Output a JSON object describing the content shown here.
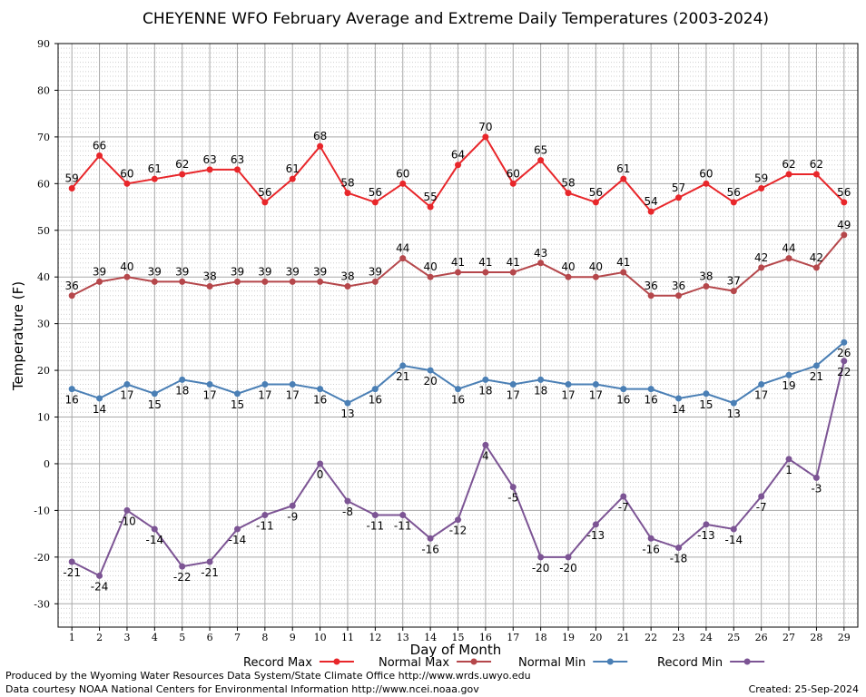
{
  "chart_data": {
    "type": "line",
    "title": "CHEYENNE WFO February Average and Extreme Daily Temperatures (2003-2024)",
    "xlabel": "Day of Month",
    "ylabel": "Temperature (F)",
    "ylim": [
      -35,
      90
    ],
    "yticks": [
      -30,
      -20,
      -10,
      0,
      10,
      20,
      30,
      40,
      50,
      60,
      70,
      80,
      90
    ],
    "categories": [
      "1",
      "2",
      "3",
      "4",
      "5",
      "6",
      "7",
      "8",
      "9",
      "10",
      "11",
      "12",
      "13",
      "14",
      "15",
      "16",
      "17",
      "18",
      "19",
      "20",
      "21",
      "22",
      "23",
      "24",
      "25",
      "26",
      "27",
      "28",
      "29"
    ],
    "grid": true,
    "legend_position": "bottom",
    "series": [
      {
        "name": "Record Max",
        "color": "#e8262a",
        "label_side": "above",
        "values": [
          59,
          66,
          60,
          61,
          62,
          63,
          63,
          56,
          61,
          68,
          58,
          56,
          60,
          55,
          64,
          70,
          60,
          65,
          58,
          56,
          61,
          54,
          57,
          60,
          56,
          59,
          62,
          62,
          56
        ]
      },
      {
        "name": "Normal Max",
        "color": "#b5474b",
        "label_side": "above",
        "values": [
          36,
          39,
          40,
          39,
          39,
          38,
          39,
          39,
          39,
          39,
          38,
          39,
          44,
          40,
          41,
          41,
          41,
          43,
          40,
          40,
          41,
          36,
          36,
          38,
          37,
          42,
          44,
          42,
          49
        ]
      },
      {
        "name": "Normal Min",
        "color": "#4a7fb5",
        "label_side": "below",
        "values": [
          16,
          14,
          17,
          15,
          18,
          17,
          15,
          17,
          17,
          16,
          13,
          16,
          21,
          20,
          16,
          18,
          17,
          18,
          17,
          17,
          16,
          16,
          14,
          15,
          13,
          17,
          19,
          21,
          26
        ]
      },
      {
        "name": "Record Min",
        "color": "#7c5494",
        "label_side": "below",
        "values": [
          -21,
          -24,
          -10,
          -14,
          -22,
          -21,
          -14,
          -11,
          -9,
          0,
          -8,
          -11,
          -11,
          -16,
          -12,
          4,
          -5,
          -20,
          -20,
          -13,
          -7,
          -16,
          -18,
          -13,
          -14,
          -7,
          1,
          -3,
          22
        ]
      }
    ]
  },
  "footer": {
    "line1": "Produced by the Wyoming Water Resources Data System/State Climate Office http://www.wrds.uwyo.edu",
    "line2": "Data courtesy NOAA National Centers for Environmental Information http://www.ncei.noaa.gov",
    "created": "Created: 25-Sep-2024"
  }
}
